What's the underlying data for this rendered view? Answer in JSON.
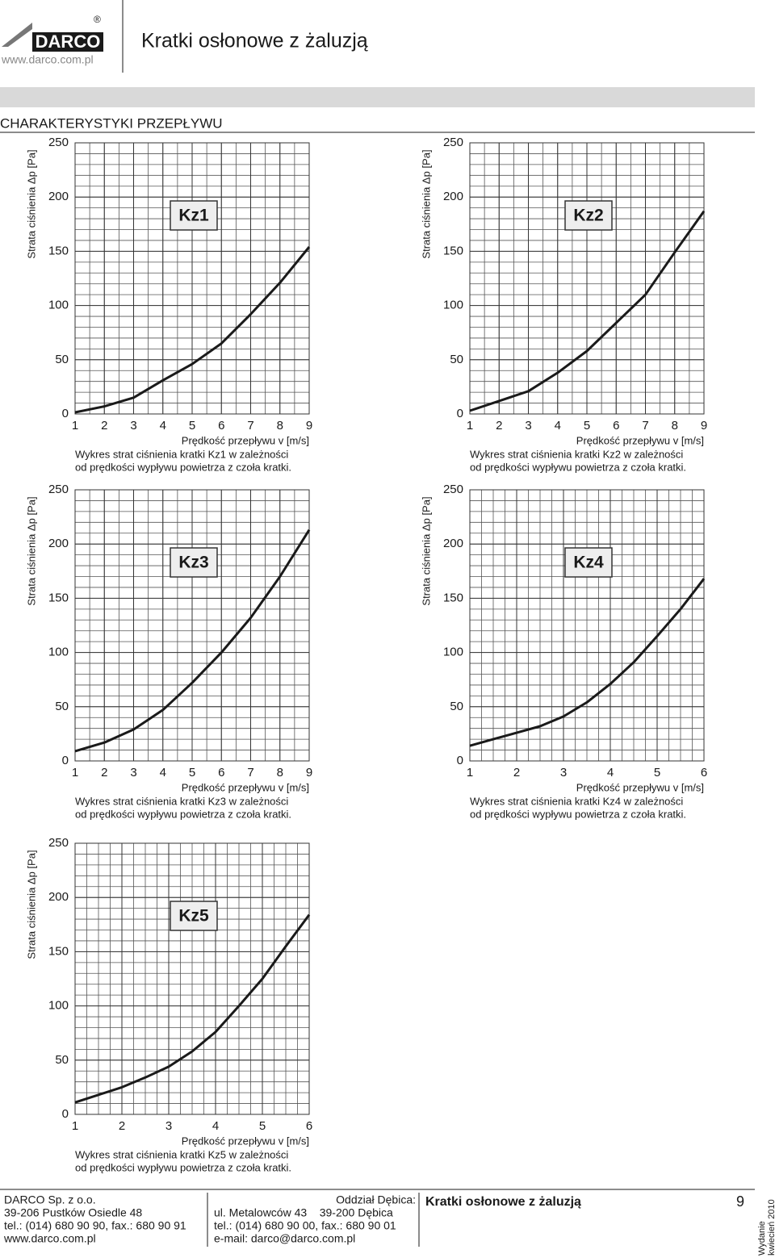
{
  "header": {
    "logo": "DARCO",
    "registered": "®",
    "url": "www.darco.com.pl",
    "title": "Kratki osłonowe z żaluzją"
  },
  "section_title": "CHARAKTERYSTYKI PRZEPŁYWU",
  "chart_data": [
    {
      "type": "line",
      "label": "Kz1",
      "ylabel": "Strata ciśnienia Δp [Pa]",
      "xlabel": "Prędkość przepływu v [m/s]",
      "caption": [
        "Wykres strat ciśnienia kratki Kz1 w zależności",
        "od prędkości wypływu powietrza z czoła kratki."
      ],
      "x": [
        1,
        2,
        3,
        4,
        5,
        6,
        7,
        8,
        9
      ],
      "values": [
        1.5,
        7,
        15,
        31,
        46,
        65,
        92,
        121,
        154
      ],
      "xlim": [
        1,
        9
      ],
      "ylim": [
        0,
        250
      ],
      "xticks": [
        1,
        2,
        3,
        4,
        5,
        6,
        7,
        8,
        9
      ],
      "yticks": [
        0,
        50,
        100,
        150,
        200,
        250
      ],
      "grid": {
        "x_step": 0.5,
        "y_step": 10
      },
      "color": "#1a1a1a"
    },
    {
      "type": "line",
      "label": "Kz2",
      "ylabel": "Strata ciśnienia Δp [Pa]",
      "xlabel": "Prędkość przepływu v [m/s]",
      "caption": [
        "Wykres strat ciśnienia kratki Kz2 w zależności",
        "od prędkości wypływu powietrza z czoła kratki."
      ],
      "x": [
        1,
        2,
        3,
        4,
        5,
        6,
        7,
        8,
        9
      ],
      "values": [
        3,
        12,
        21,
        38,
        58,
        84,
        110,
        149,
        187
      ],
      "xlim": [
        1,
        9
      ],
      "ylim": [
        0,
        250
      ],
      "xticks": [
        1,
        2,
        3,
        4,
        5,
        6,
        7,
        8,
        9
      ],
      "yticks": [
        0,
        50,
        100,
        150,
        200,
        250
      ],
      "grid": {
        "x_step": 0.5,
        "y_step": 10
      },
      "color": "#1a1a1a"
    },
    {
      "type": "line",
      "label": "Kz3",
      "ylabel": "Strata ciśnienia Δp [Pa]",
      "xlabel": "Prędkość przepływu v [m/s]",
      "caption": [
        "Wykres strat ciśnienia kratki Kz3 w zależności",
        "od prędkości wypływu powietrza z czoła kratki."
      ],
      "x": [
        1,
        2,
        3,
        4,
        5,
        6,
        7,
        8,
        9
      ],
      "values": [
        9,
        17,
        29,
        47,
        72,
        100,
        132,
        170,
        213
      ],
      "xlim": [
        1,
        9
      ],
      "ylim": [
        0,
        250
      ],
      "xticks": [
        1,
        2,
        3,
        4,
        5,
        6,
        7,
        8,
        9
      ],
      "yticks": [
        0,
        50,
        100,
        150,
        200,
        250
      ],
      "grid": {
        "x_step": 0.5,
        "y_step": 10
      },
      "color": "#1a1a1a"
    },
    {
      "type": "line",
      "label": "Kz4",
      "ylabel": "Strata ciśnienia Δp [Pa]",
      "xlabel": "Prędkość przepływu v [m/s]",
      "caption": [
        "Wykres strat ciśnienia kratki Kz4 w zależności",
        "od prędkości wypływu powietrza z czoła kratki."
      ],
      "x": [
        1,
        1.5,
        2,
        2.5,
        3,
        3.5,
        4,
        4.5,
        5,
        5.5,
        6
      ],
      "values": [
        14,
        20,
        26,
        32,
        41,
        54,
        71,
        91,
        115,
        140,
        168
      ],
      "xlim": [
        1,
        6
      ],
      "ylim": [
        0,
        250
      ],
      "xticks": [
        1,
        2,
        3,
        4,
        5,
        6
      ],
      "yticks": [
        0,
        50,
        100,
        150,
        200,
        250
      ],
      "grid": {
        "x_step": 0.25,
        "y_step": 10
      },
      "color": "#1a1a1a"
    },
    {
      "type": "line",
      "label": "Kz5",
      "ylabel": "Strata ciśnienia Δp [Pa]",
      "xlabel": "Prędkość przepływu v [m/s]",
      "caption": [
        "Wykres strat ciśnienia kratki Kz5 w zależności",
        "od prędkości wypływu powietrza z czoła kratki."
      ],
      "x": [
        1,
        1.5,
        2,
        2.5,
        3,
        3.5,
        4,
        4.5,
        5,
        5.5,
        6
      ],
      "values": [
        11,
        18,
        25,
        34,
        44,
        58,
        76,
        100,
        125,
        155,
        184
      ],
      "xlim": [
        1,
        6
      ],
      "ylim": [
        0,
        250
      ],
      "xticks": [
        1,
        2,
        3,
        4,
        5,
        6
      ],
      "yticks": [
        0,
        50,
        100,
        150,
        200,
        250
      ],
      "grid": {
        "x_step": 0.25,
        "y_step": 10
      },
      "color": "#1a1a1a"
    }
  ],
  "footer": {
    "company": [
      "DARCO Sp. z o.o.",
      "39-206 Pustków Osiedle 48",
      "tel.: (014) 680 90 90, fax.: 680 90 91",
      "www.darco.com.pl"
    ],
    "branch_title": "Oddział Dębica:",
    "branch": [
      "ul. Metalowców 43    39-200 Dębica",
      "tel.: (014) 680 90 00, fax.: 680 90 01",
      "e-mail: darco@darco.com.pl"
    ],
    "product": "Kratki osłonowe z żaluzją",
    "page": "9",
    "edition": [
      "Wydanie",
      "kwiecień 2010"
    ]
  }
}
